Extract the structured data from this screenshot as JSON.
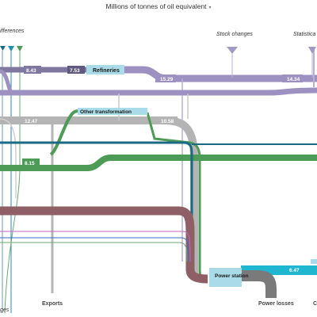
{
  "header": {
    "unit_selector": "Millions of tonnes of oil equivalent",
    "caret_icon": "caret-down-icon"
  },
  "nodes": {
    "differences": "ifferences",
    "stock_changes": "Stock  changes",
    "statistical": "Statistica",
    "refineries": "Refineries",
    "other_transformation": "Other transformation",
    "power_station": "Power station",
    "exports": "Exports",
    "power_losses": "Power losses",
    "bottom_left_partial": "ges",
    "bottom_right_partial": "C"
  },
  "flows": {
    "refinery_in_a": "8.43",
    "refinery_in_b": "7.53",
    "refinery_out": "15.29",
    "refinery_to_right": "14.34",
    "gray_to_other": "12.47",
    "other_out": "10.58",
    "green_flow": "8.15",
    "power_out": "6.47"
  },
  "colors": {
    "purple": "#9c91c0",
    "dark_purple": "#7f779f",
    "gray": "#b4b4b4",
    "green": "#4e9a57",
    "teal": "#11a0a0",
    "dark_teal": "#1b6a84",
    "maroon": "#8f5f66",
    "cyan": "#1fb6cf",
    "node_blue": "#a9dbe8",
    "loss_gray": "#7a7a7a"
  }
}
